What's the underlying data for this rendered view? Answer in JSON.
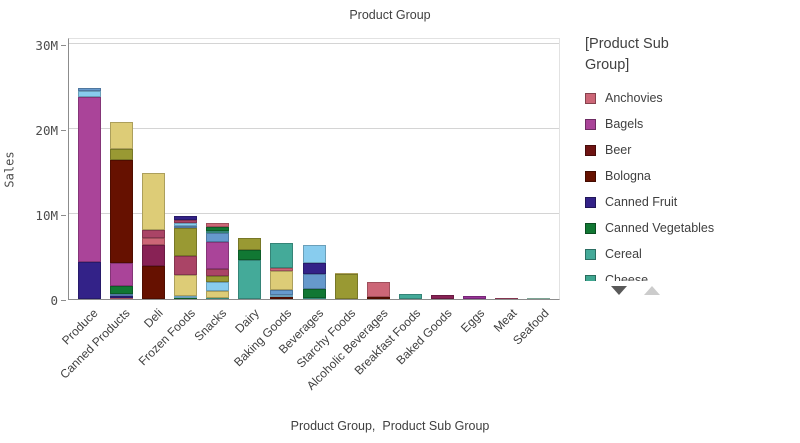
{
  "chart_data": {
    "type": "bar",
    "stacked": true,
    "title": "Product Group",
    "xlabel": "Product Group,  Product Sub Group",
    "ylabel": "Sales",
    "ylim": [
      0,
      30000000
    ],
    "y_unit": "millions",
    "grid": true,
    "legend_position": "right",
    "yticks": [
      {
        "label": "30M",
        "value": 30
      },
      {
        "label": "20M",
        "value": 20
      },
      {
        "label": "10M",
        "value": 10
      },
      {
        "label": "0",
        "value": 0
      }
    ],
    "categories": [
      "Produce",
      "Canned Products",
      "Deli",
      "Frozen Foods",
      "Snacks",
      "Dairy",
      "Baking Goods",
      "Beverages",
      "Starchy Foods",
      "Alcoholic Beverages",
      "Breakfast Foods",
      "Baked Goods",
      "Eggs",
      "Meat",
      "Seafood"
    ],
    "bars": [
      {
        "category": "Produce",
        "total_m": 24.8,
        "segments": [
          {
            "color": "#332288",
            "value_m": 4.4
          },
          {
            "color": "#AA4499",
            "value_m": 19.4
          },
          {
            "color": "#88CCEE",
            "value_m": 0.7
          },
          {
            "color": "#6699CC",
            "value_m": 0.3
          }
        ]
      },
      {
        "category": "Canned Products",
        "total_m": 20.8,
        "segments": [
          {
            "color": "#CC6677",
            "value_m": 0.15
          },
          {
            "color": "#332288",
            "value_m": 0.15
          },
          {
            "color": "#6699CC",
            "value_m": 0.3
          },
          {
            "color": "#117733",
            "value_m": 0.9
          },
          {
            "color": "#AA4499",
            "value_m": 2.7
          },
          {
            "color": "#661100",
            "value_m": 12.2
          },
          {
            "color": "#999933",
            "value_m": 1.2
          },
          {
            "color": "#DDCC77",
            "value_m": 3.2
          }
        ]
      },
      {
        "category": "Deli",
        "total_m": 14.8,
        "segments": [
          {
            "color": "#661100",
            "value_m": 3.9
          },
          {
            "color": "#882255",
            "value_m": 2.4
          },
          {
            "color": "#CC6677",
            "value_m": 0.9
          },
          {
            "color": "#AA4466",
            "value_m": 0.9
          },
          {
            "color": "#DDCC77",
            "value_m": 6.7
          }
        ]
      },
      {
        "category": "Frozen Foods",
        "total_m": 9.8,
        "segments": [
          {
            "color": "#117733",
            "value_m": 0.1
          },
          {
            "color": "#88CCEE",
            "value_m": 0.3
          },
          {
            "color": "#DDCC77",
            "value_m": 2.4
          },
          {
            "color": "#AA4466",
            "value_m": 2.3
          },
          {
            "color": "#999933",
            "value_m": 3.25
          },
          {
            "color": "#6699CC",
            "value_m": 0.25
          },
          {
            "color": "#88CCEE",
            "value_m": 0.4
          },
          {
            "color": "#AA4466",
            "value_m": 0.25
          },
          {
            "color": "#332288",
            "value_m": 0.55
          }
        ]
      },
      {
        "category": "Snacks",
        "total_m": 9.0,
        "segments": [
          {
            "color": "#44AA99",
            "value_m": 0.15
          },
          {
            "color": "#DDCC77",
            "value_m": 0.85
          },
          {
            "color": "#88CCEE",
            "value_m": 1.0
          },
          {
            "color": "#999933",
            "value_m": 0.75
          },
          {
            "color": "#AA4466",
            "value_m": 0.75
          },
          {
            "color": "#AA4499",
            "value_m": 3.2
          },
          {
            "color": "#6699CC",
            "value_m": 1.1
          },
          {
            "color": "#44AA99",
            "value_m": 0.2
          },
          {
            "color": "#117733",
            "value_m": 0.45
          },
          {
            "color": "#CC6677",
            "value_m": 0.55
          }
        ]
      },
      {
        "category": "Dairy",
        "total_m": 7.2,
        "segments": [
          {
            "color": "#44AA99",
            "value_m": 4.6
          },
          {
            "color": "#117733",
            "value_m": 1.2
          },
          {
            "color": "#999933",
            "value_m": 1.4
          }
        ]
      },
      {
        "category": "Baking Goods",
        "total_m": 6.6,
        "segments": [
          {
            "color": "#661100",
            "value_m": 0.2
          },
          {
            "color": "#88CCEE",
            "value_m": 0.25
          },
          {
            "color": "#6699CC",
            "value_m": 0.6
          },
          {
            "color": "#DDCC77",
            "value_m": 2.25
          },
          {
            "color": "#CC6677",
            "value_m": 0.4
          },
          {
            "color": "#44AA99",
            "value_m": 2.9
          }
        ]
      },
      {
        "category": "Beverages",
        "total_m": 6.4,
        "segments": [
          {
            "color": "#44AA99",
            "value_m": 0.15
          },
          {
            "color": "#117733",
            "value_m": 1.05
          },
          {
            "color": "#6699CC",
            "value_m": 1.8
          },
          {
            "color": "#332288",
            "value_m": 1.2
          },
          {
            "color": "#88CCEE",
            "value_m": 2.2
          }
        ]
      },
      {
        "category": "Starchy Foods",
        "total_m": 3.1,
        "segments": [
          {
            "color": "#999933",
            "value_m": 2.9
          },
          {
            "color": "#DDCC77",
            "value_m": 0.2
          }
        ]
      },
      {
        "category": "Alcoholic Beverages",
        "total_m": 2.0,
        "segments": [
          {
            "color": "#661100",
            "value_m": 0.25
          },
          {
            "color": "#CC6677",
            "value_m": 1.75
          }
        ]
      },
      {
        "category": "Breakfast Foods",
        "total_m": 0.6,
        "segments": [
          {
            "color": "#44AA99",
            "value_m": 0.6
          }
        ]
      },
      {
        "category": "Baked Goods",
        "total_m": 0.45,
        "segments": [
          {
            "color": "#882255",
            "value_m": 0.45
          }
        ]
      },
      {
        "category": "Eggs",
        "total_m": 0.3,
        "segments": [
          {
            "color": "#993399",
            "value_m": 0.3
          }
        ]
      },
      {
        "category": "Meat",
        "total_m": 0.15,
        "segments": [
          {
            "color": "#AA4466",
            "value_m": 0.15
          }
        ]
      },
      {
        "category": "Seafood",
        "total_m": 0.12,
        "segments": [
          {
            "color": "#9FD4BE",
            "value_m": 0.12
          }
        ]
      }
    ],
    "legend": {
      "title": "[Product Sub Group]",
      "items": [
        {
          "label": "Anchovies",
          "color": "#CC6677"
        },
        {
          "label": "Bagels",
          "color": "#AA4499"
        },
        {
          "label": "Beer",
          "color": "#6E1312"
        },
        {
          "label": "Bologna",
          "color": "#661100"
        },
        {
          "label": "Canned Fruit",
          "color": "#332288"
        },
        {
          "label": "Canned Vegetables",
          "color": "#117733"
        },
        {
          "label": "Cereal",
          "color": "#44AA99"
        },
        {
          "label": "Cheese",
          "color": "#3FA690"
        }
      ],
      "scroll_down_arrow_color": "#595959",
      "scroll_up_arrow_color": "#cccccc"
    }
  }
}
